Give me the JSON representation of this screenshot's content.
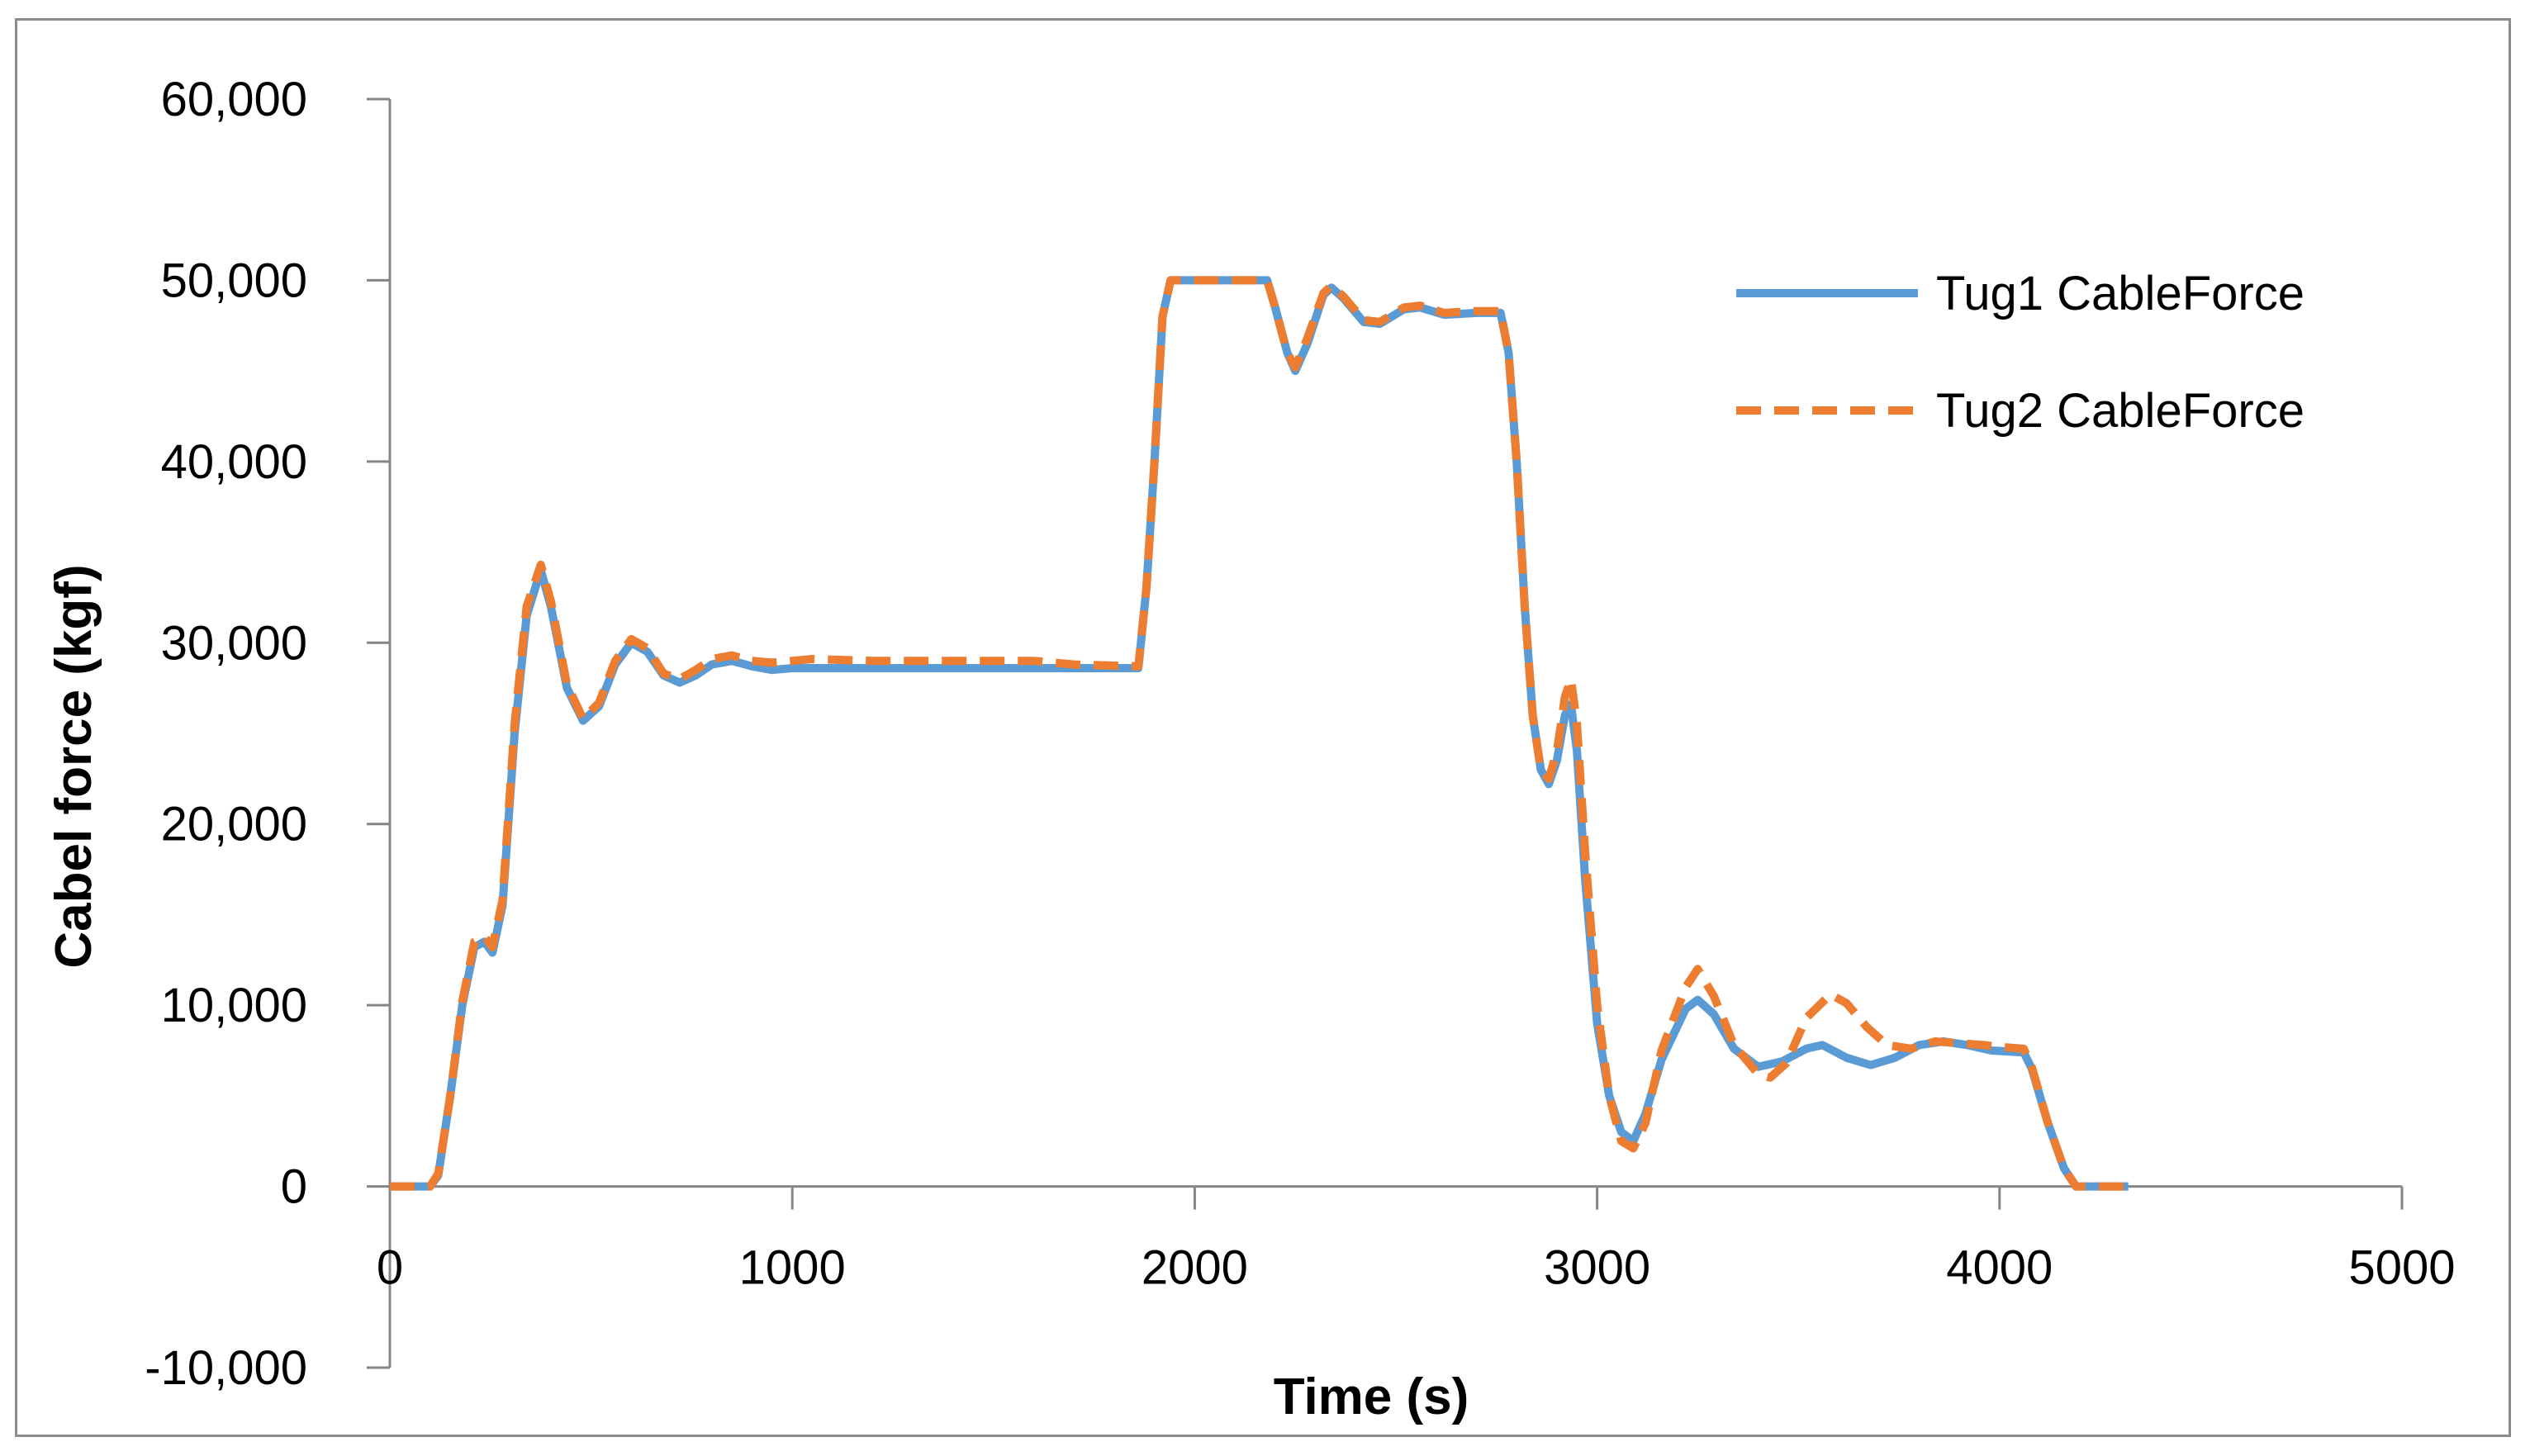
{
  "chart_data": {
    "type": "line",
    "title": "",
    "xlabel": "Time (s)",
    "ylabel": "Cabel force (kgf)",
    "xlim": [
      0,
      5000
    ],
    "ylim": [
      -10000,
      60000
    ],
    "x_ticks": [
      0,
      1000,
      2000,
      3000,
      4000,
      5000
    ],
    "x_tick_labels": [
      "0",
      "1000",
      "2000",
      "3000",
      "4000",
      "5000"
    ],
    "y_ticks": [
      -10000,
      0,
      10000,
      20000,
      30000,
      40000,
      50000,
      60000
    ],
    "y_tick_labels": [
      "-10,000",
      "0",
      "10,000",
      "20,000",
      "30,000",
      "40,000",
      "50,000",
      "60,000"
    ],
    "grid": false,
    "legend_position": "top-right",
    "series": [
      {
        "name": "Tug1 CableForce",
        "color": "#5b9bd5",
        "style": "solid",
        "points": [
          [
            0,
            0
          ],
          [
            100,
            0
          ],
          [
            120,
            600
          ],
          [
            150,
            5000
          ],
          [
            180,
            10000
          ],
          [
            210,
            13200
          ],
          [
            235,
            13500
          ],
          [
            255,
            12900
          ],
          [
            280,
            15500
          ],
          [
            310,
            25000
          ],
          [
            340,
            31500
          ],
          [
            375,
            34000
          ],
          [
            400,
            32000
          ],
          [
            440,
            27500
          ],
          [
            480,
            25700
          ],
          [
            520,
            26500
          ],
          [
            560,
            28800
          ],
          [
            600,
            30000
          ],
          [
            640,
            29500
          ],
          [
            680,
            28200
          ],
          [
            720,
            27800
          ],
          [
            760,
            28200
          ],
          [
            800,
            28800
          ],
          [
            850,
            29000
          ],
          [
            900,
            28700
          ],
          [
            950,
            28500
          ],
          [
            1000,
            28600
          ],
          [
            1200,
            28600
          ],
          [
            1500,
            28600
          ],
          [
            1700,
            28600
          ],
          [
            1860,
            28600
          ],
          [
            1880,
            33000
          ],
          [
            1900,
            40000
          ],
          [
            1920,
            48000
          ],
          [
            1940,
            50000
          ],
          [
            2000,
            50000
          ],
          [
            2180,
            50000
          ],
          [
            2200,
            48500
          ],
          [
            2230,
            46000
          ],
          [
            2250,
            45000
          ],
          [
            2280,
            46500
          ],
          [
            2320,
            49200
          ],
          [
            2340,
            49600
          ],
          [
            2370,
            49000
          ],
          [
            2420,
            47700
          ],
          [
            2460,
            47600
          ],
          [
            2520,
            48400
          ],
          [
            2560,
            48500
          ],
          [
            2620,
            48100
          ],
          [
            2700,
            48200
          ],
          [
            2760,
            48200
          ],
          [
            2780,
            46000
          ],
          [
            2800,
            40000
          ],
          [
            2820,
            32000
          ],
          [
            2840,
            26000
          ],
          [
            2860,
            23000
          ],
          [
            2880,
            22200
          ],
          [
            2900,
            23500
          ],
          [
            2920,
            26000
          ],
          [
            2935,
            26600
          ],
          [
            2950,
            24000
          ],
          [
            2970,
            17000
          ],
          [
            3000,
            9000
          ],
          [
            3030,
            5000
          ],
          [
            3060,
            3000
          ],
          [
            3090,
            2500
          ],
          [
            3120,
            4000
          ],
          [
            3160,
            7000
          ],
          [
            3220,
            9800
          ],
          [
            3250,
            10300
          ],
          [
            3290,
            9500
          ],
          [
            3340,
            7600
          ],
          [
            3400,
            6600
          ],
          [
            3460,
            6900
          ],
          [
            3520,
            7600
          ],
          [
            3560,
            7800
          ],
          [
            3620,
            7100
          ],
          [
            3680,
            6700
          ],
          [
            3740,
            7100
          ],
          [
            3800,
            7800
          ],
          [
            3860,
            8000
          ],
          [
            3920,
            7800
          ],
          [
            3980,
            7500
          ],
          [
            4060,
            7400
          ],
          [
            4080,
            6500
          ],
          [
            4120,
            3500
          ],
          [
            4160,
            1000
          ],
          [
            4190,
            0
          ],
          [
            4320,
            0
          ]
        ]
      },
      {
        "name": "Tug2 CableForce",
        "color": "#ed7d31",
        "style": "dashed",
        "points": [
          [
            0,
            0
          ],
          [
            100,
            0
          ],
          [
            120,
            700
          ],
          [
            150,
            5000
          ],
          [
            180,
            10200
          ],
          [
            210,
            13500
          ],
          [
            235,
            13800
          ],
          [
            255,
            13200
          ],
          [
            280,
            15800
          ],
          [
            310,
            25500
          ],
          [
            340,
            32000
          ],
          [
            375,
            34300
          ],
          [
            400,
            32300
          ],
          [
            440,
            27700
          ],
          [
            480,
            25800
          ],
          [
            520,
            26700
          ],
          [
            560,
            29000
          ],
          [
            600,
            30200
          ],
          [
            640,
            29700
          ],
          [
            680,
            28300
          ],
          [
            720,
            28000
          ],
          [
            760,
            28500
          ],
          [
            800,
            29100
          ],
          [
            850,
            29300
          ],
          [
            900,
            29000
          ],
          [
            950,
            28900
          ],
          [
            1000,
            29000
          ],
          [
            1050,
            29100
          ],
          [
            1200,
            29000
          ],
          [
            1500,
            29000
          ],
          [
            1600,
            29000
          ],
          [
            1700,
            28800
          ],
          [
            1860,
            28700
          ],
          [
            1880,
            33000
          ],
          [
            1900,
            40000
          ],
          [
            1920,
            48000
          ],
          [
            1940,
            50000
          ],
          [
            2000,
            50000
          ],
          [
            2180,
            50000
          ],
          [
            2200,
            48500
          ],
          [
            2230,
            46000
          ],
          [
            2250,
            45200
          ],
          [
            2280,
            46800
          ],
          [
            2320,
            49300
          ],
          [
            2340,
            49700
          ],
          [
            2370,
            49100
          ],
          [
            2420,
            47800
          ],
          [
            2460,
            47700
          ],
          [
            2520,
            48500
          ],
          [
            2560,
            48600
          ],
          [
            2620,
            48200
          ],
          [
            2700,
            48300
          ],
          [
            2760,
            48300
          ],
          [
            2780,
            46000
          ],
          [
            2800,
            40000
          ],
          [
            2820,
            32000
          ],
          [
            2840,
            26000
          ],
          [
            2860,
            23000
          ],
          [
            2880,
            22500
          ],
          [
            2900,
            24000
          ],
          [
            2920,
            27000
          ],
          [
            2935,
            28000
          ],
          [
            2950,
            25500
          ],
          [
            2970,
            18500
          ],
          [
            3000,
            10000
          ],
          [
            3030,
            5000
          ],
          [
            3060,
            2500
          ],
          [
            3090,
            2100
          ],
          [
            3120,
            3500
          ],
          [
            3160,
            7500
          ],
          [
            3220,
            11000
          ],
          [
            3250,
            12000
          ],
          [
            3290,
            10500
          ],
          [
            3340,
            7800
          ],
          [
            3400,
            6200
          ],
          [
            3430,
            6000
          ],
          [
            3470,
            6800
          ],
          [
            3520,
            9300
          ],
          [
            3580,
            10600
          ],
          [
            3620,
            10100
          ],
          [
            3670,
            8800
          ],
          [
            3720,
            7800
          ],
          [
            3780,
            7600
          ],
          [
            3840,
            8000
          ],
          [
            3900,
            7900
          ],
          [
            3960,
            7800
          ],
          [
            4000,
            7700
          ],
          [
            4060,
            7600
          ],
          [
            4080,
            6600
          ],
          [
            4120,
            3500
          ],
          [
            4160,
            1000
          ],
          [
            4190,
            0
          ],
          [
            4320,
            0
          ]
        ]
      }
    ]
  }
}
